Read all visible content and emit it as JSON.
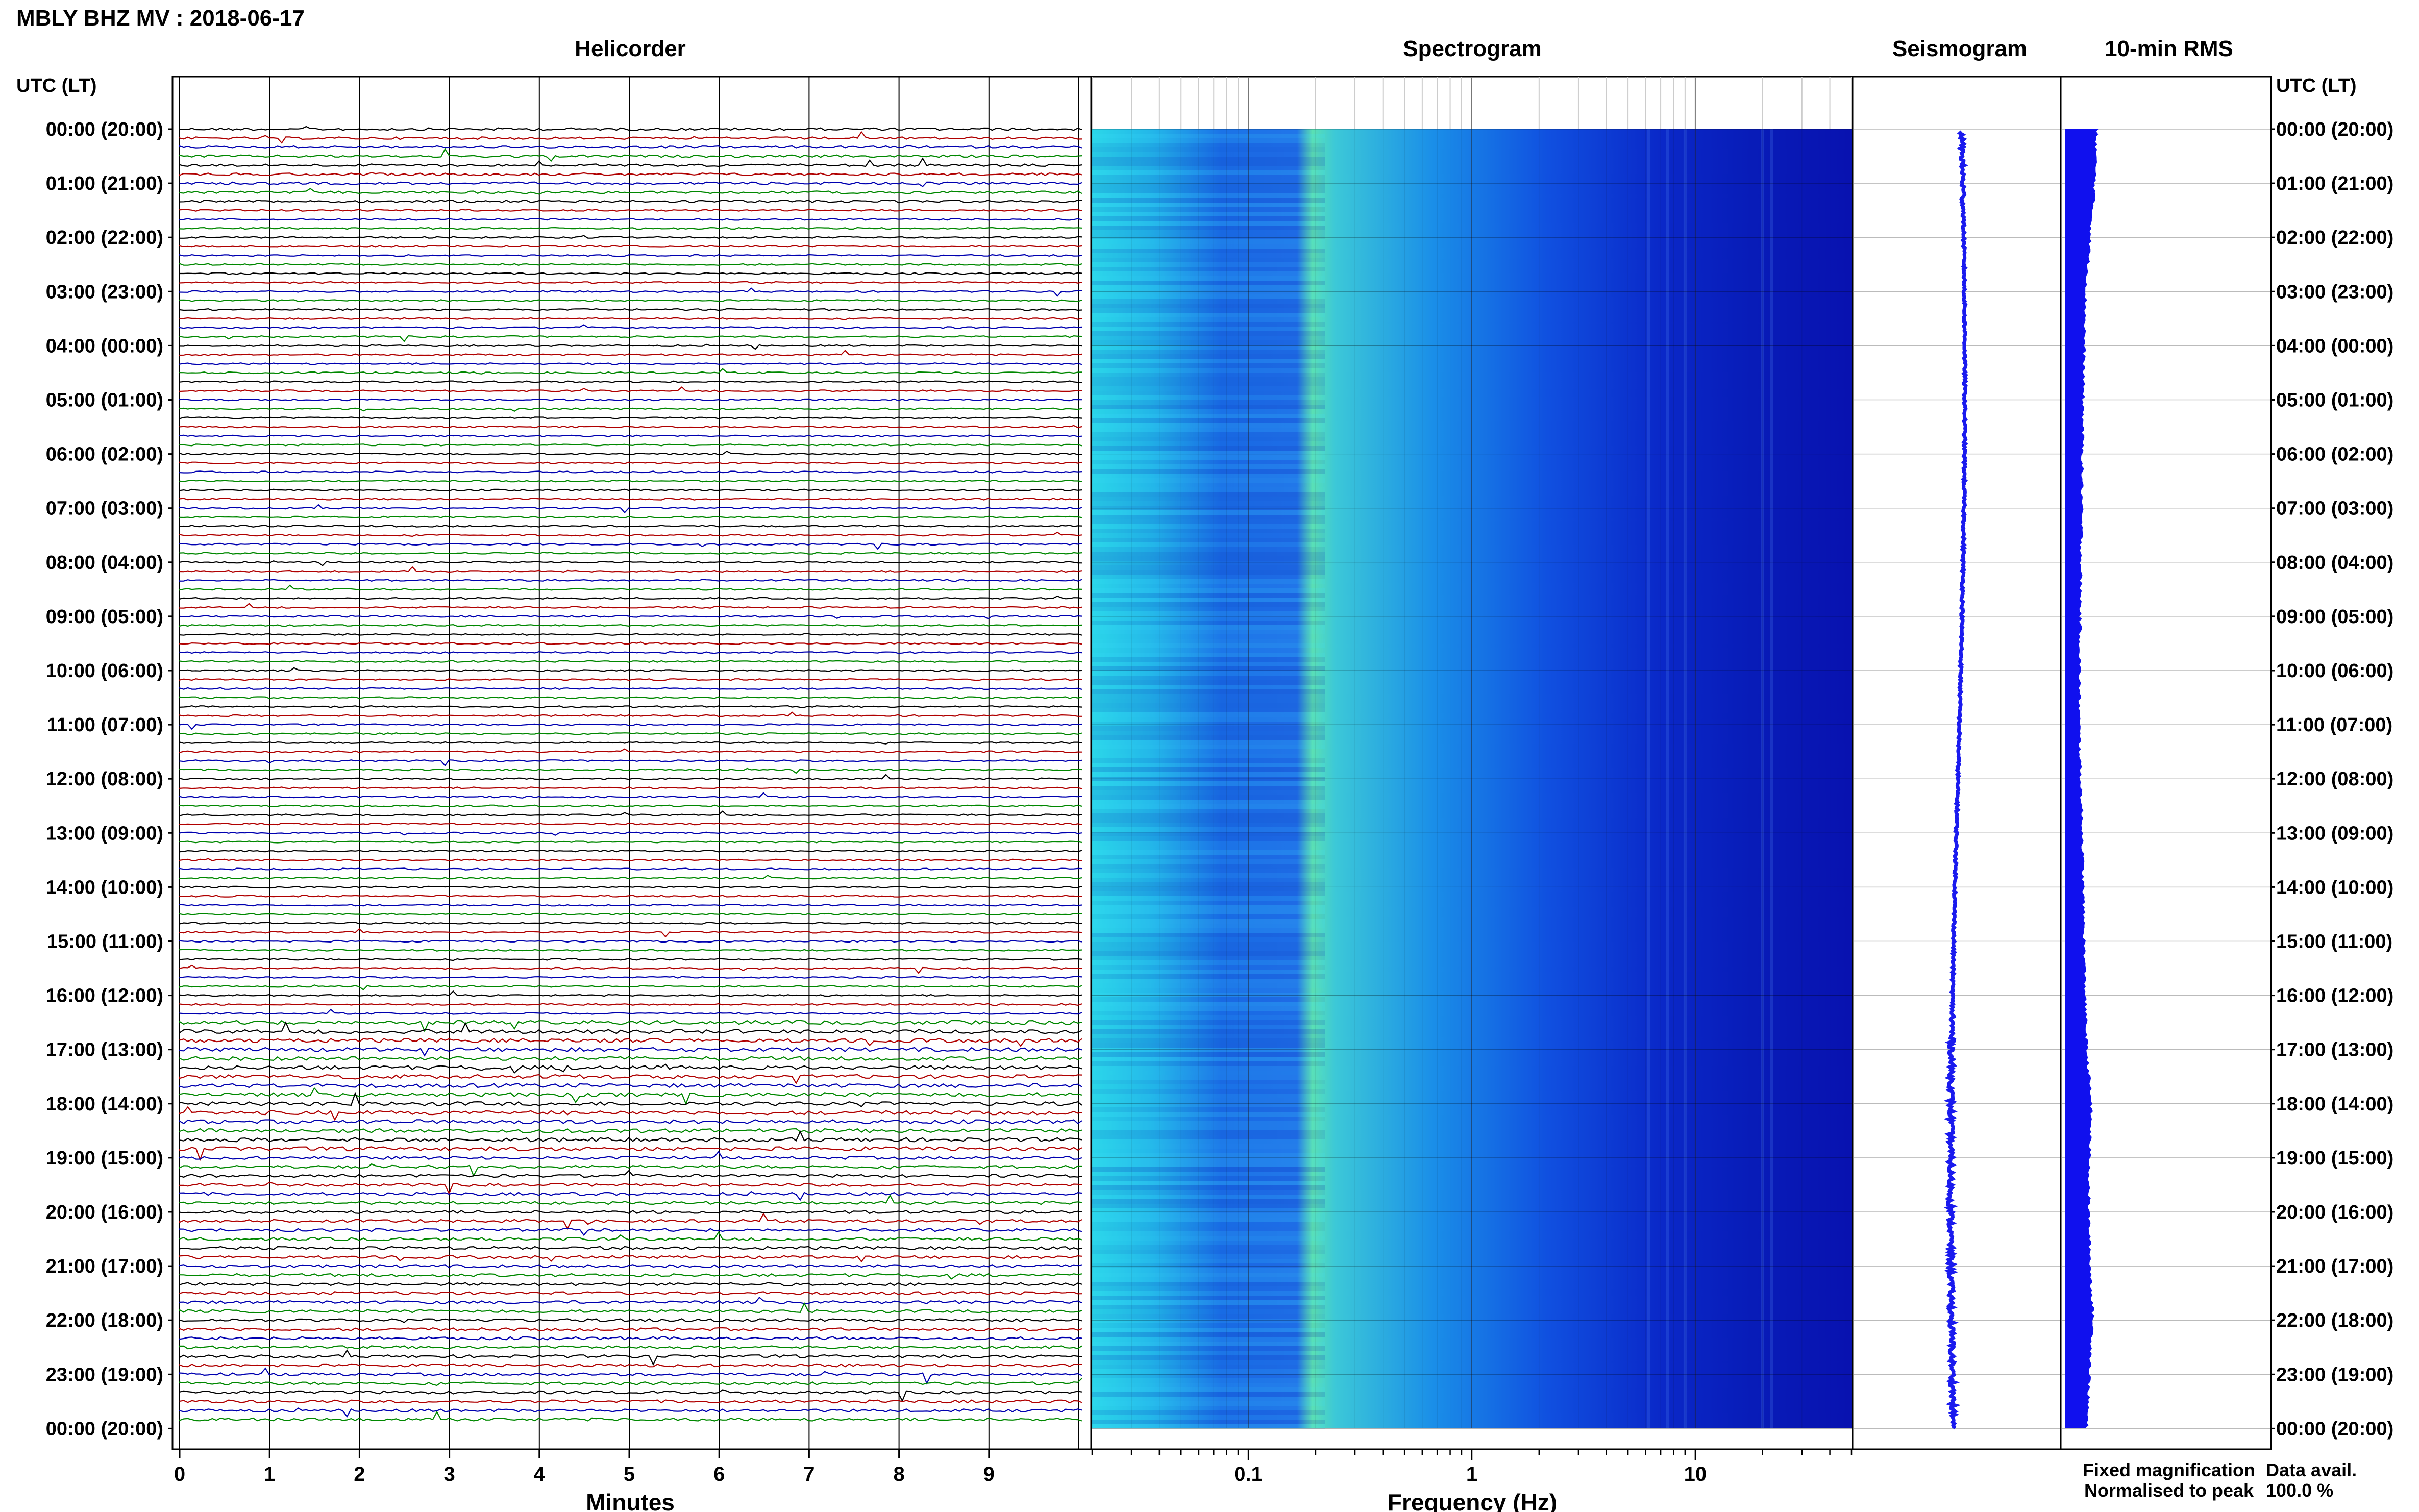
{
  "title": "MBLY BHZ MV : 2018-06-17",
  "panels": {
    "helicorder": "Helicorder",
    "spectrogram": "Spectrogram",
    "seismogram": "Seismogram",
    "rms": "10-min RMS"
  },
  "axis_header_left": "UTC (LT)",
  "axis_header_right": "UTC (LT)",
  "time_labels": [
    "00:00 (20:00)",
    "01:00 (21:00)",
    "02:00 (22:00)",
    "03:00 (23:00)",
    "04:00 (00:00)",
    "05:00 (01:00)",
    "06:00 (02:00)",
    "07:00 (03:00)",
    "08:00 (04:00)",
    "09:00 (05:00)",
    "10:00 (06:00)",
    "11:00 (07:00)",
    "12:00 (08:00)",
    "13:00 (09:00)",
    "14:00 (10:00)",
    "15:00 (11:00)",
    "16:00 (12:00)",
    "17:00 (13:00)",
    "18:00 (14:00)",
    "19:00 (15:00)",
    "20:00 (16:00)",
    "21:00 (17:00)",
    "22:00 (18:00)",
    "23:00 (19:00)",
    "00:00 (20:00)"
  ],
  "minutes_axis": {
    "label": "Minutes",
    "ticks": [
      "0",
      "1",
      "2",
      "3",
      "4",
      "5",
      "6",
      "7",
      "8",
      "9"
    ]
  },
  "frequency_axis": {
    "label": "Frequency (Hz)",
    "ticks": [
      "0.1",
      "1",
      "10"
    ]
  },
  "legend": {
    "fixed": "Fixed magnification",
    "normalised": "Normalised to peak",
    "fixed_color": "#1010ee",
    "normalised_color": "#ee1010"
  },
  "data_avail": {
    "label": "Data avail.",
    "value": "100.0 %"
  },
  "colors": {
    "trace_cycle": [
      "#000000",
      "#b00000",
      "#0000b0",
      "#008800"
    ],
    "seismogram": "#1a1aee",
    "rms": "#1010ee"
  },
  "chart_data": {
    "type": "heatmap",
    "helicorder_lines_per_hour": 6,
    "helicorder_minutes_range": [
      0,
      10
    ],
    "spectrogram_freq_range_hz": [
      0.02,
      50
    ],
    "spectrogram_scale": "log",
    "rms_profile": [
      0.9,
      0.85,
      0.72,
      0.6,
      0.55,
      0.52,
      0.5,
      0.48,
      0.46,
      0.44,
      0.42,
      0.41,
      0.45,
      0.5,
      0.52,
      0.55,
      0.58,
      0.62,
      0.75,
      0.7,
      0.68,
      0.72,
      0.8,
      0.7,
      0.62
    ]
  }
}
